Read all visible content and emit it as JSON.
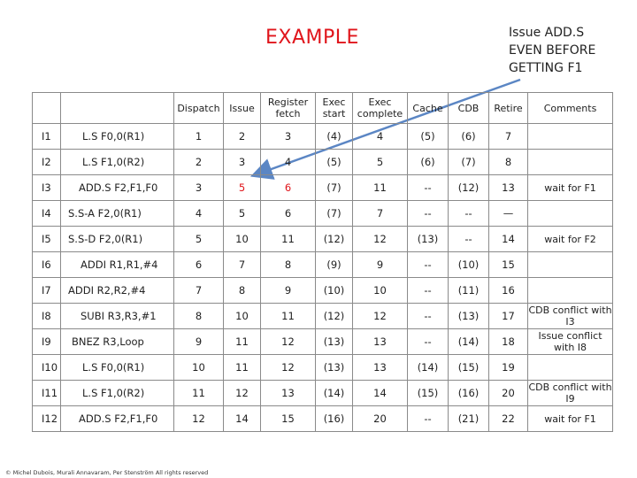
{
  "title": "EXAMPLE",
  "note_lines": [
    "Issue ADD.S",
    "EVEN BEFORE",
    "GETTING F1"
  ],
  "columns": [
    "",
    "",
    "Dispatch",
    "Issue",
    "Register fetch",
    "Exec start",
    "Exec complete",
    "Cache",
    "CDB",
    "Retire",
    "Comments"
  ],
  "rows": [
    {
      "id": "I1",
      "instr": "L.S F0,0(R1)",
      "dispatch": "1",
      "issue": "2",
      "regfetch": "3",
      "exec_start": "(4)",
      "exec_complete": "4",
      "cache": "(5)",
      "cdb": "(6)",
      "retire": "7",
      "comment": ""
    },
    {
      "id": "I2",
      "instr": "L.S F1,0(R2)",
      "dispatch": "2",
      "issue": "3",
      "regfetch": "4",
      "exec_start": "(5)",
      "exec_complete": "5",
      "cache": "(6)",
      "cdb": "(7)",
      "retire": "8",
      "comment": ""
    },
    {
      "id": "I3",
      "instr": "ADD.S F2,F1,F0",
      "dispatch": "3",
      "issue": "5",
      "regfetch": "6",
      "exec_start": "(7)",
      "exec_complete": "11",
      "cache": "--",
      "cdb": "(12)",
      "retire": "13",
      "comment": "wait for F1"
    },
    {
      "id": "I4",
      "instr": "S.S-A F2,0(R1)",
      "dispatch": "4",
      "issue": "5",
      "regfetch": "6",
      "exec_start": "(7)",
      "exec_complete": "7",
      "cache": "--",
      "cdb": "--",
      "retire": "—",
      "comment": ""
    },
    {
      "id": "I5",
      "instr": "S.S-D F2,0(R1)",
      "dispatch": "5",
      "issue": "10",
      "regfetch": "11",
      "exec_start": "(12)",
      "exec_complete": "12",
      "cache": "(13)",
      "cdb": "--",
      "retire": "14",
      "comment": "wait for F2"
    },
    {
      "id": "I6",
      "instr": "ADDI R1,R1,#4",
      "dispatch": "6",
      "issue": "7",
      "regfetch": "8",
      "exec_start": "(9)",
      "exec_complete": "9",
      "cache": "--",
      "cdb": "(10)",
      "retire": "15",
      "comment": ""
    },
    {
      "id": "I7",
      "instr": "ADDI R2,R2,#4",
      "dispatch": "7",
      "issue": "8",
      "regfetch": "9",
      "exec_start": "(10)",
      "exec_complete": "10",
      "cache": "--",
      "cdb": "(11)",
      "retire": "16",
      "comment": ""
    },
    {
      "id": "I8",
      "instr": "SUBI R3,R3,#1",
      "dispatch": "8",
      "issue": "10",
      "regfetch": "11",
      "exec_start": "(12)",
      "exec_complete": "12",
      "cache": "--",
      "cdb": "(13)",
      "retire": "17",
      "comment": "CDB conflict with I3"
    },
    {
      "id": "I9",
      "instr": "BNEZ R3,Loop",
      "dispatch": "9",
      "issue": "11",
      "regfetch": "12",
      "exec_start": "(13)",
      "exec_complete": "13",
      "cache": "--",
      "cdb": "(14)",
      "retire": "18",
      "comment": "Issue conflict with I8"
    },
    {
      "id": "I10",
      "instr": "L.S F0,0(R1)",
      "dispatch": "10",
      "issue": "11",
      "regfetch": "12",
      "exec_start": "(13)",
      "exec_complete": "13",
      "cache": "(14)",
      "cdb": "(15)",
      "retire": "19",
      "comment": ""
    },
    {
      "id": "I11",
      "instr": "L.S F1,0(R2)",
      "dispatch": "11",
      "issue": "12",
      "regfetch": "13",
      "exec_start": "(14)",
      "exec_complete": "14",
      "cache": "(15)",
      "cdb": "(16)",
      "retire": "20",
      "comment": "CDB conflict with I9"
    },
    {
      "id": "I12",
      "instr": "ADD.S F2,F1,F0",
      "dispatch": "12",
      "issue": "14",
      "regfetch": "15",
      "exec_start": "(16)",
      "exec_complete": "20",
      "cache": "--",
      "cdb": "(21)",
      "retire": "22",
      "comment": "wait for F1"
    }
  ],
  "highlight_color": "#e0151b",
  "arrow_color": "#5b86c4",
  "footer": "© Michel Dubois, Murali Annavaram, Per Stenström All rights reserved"
}
